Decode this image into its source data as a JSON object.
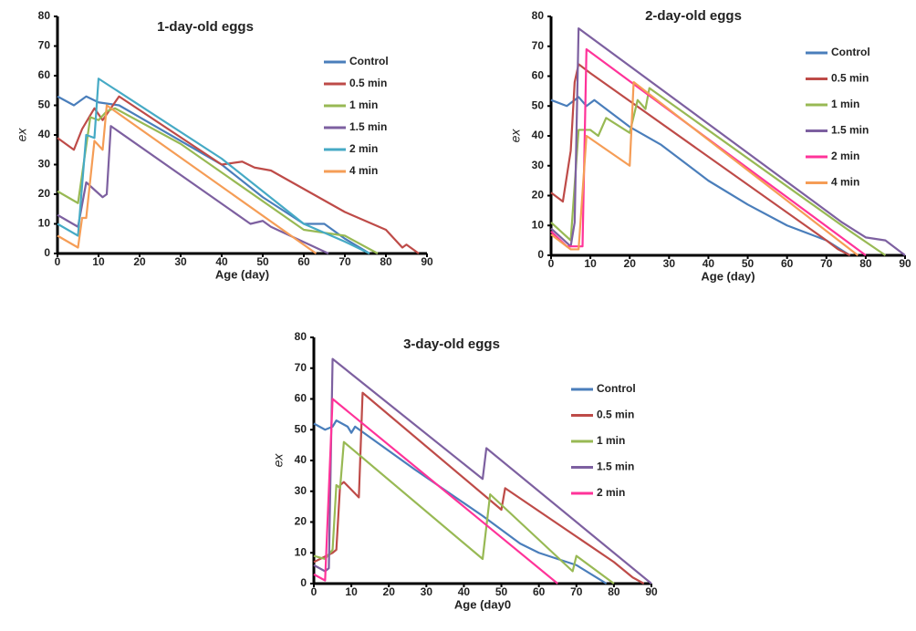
{
  "chart_data": [
    {
      "type": "line",
      "title": "1-day-old eggs",
      "xlabel": "Age (day)",
      "ylabel": "ex",
      "xlim": [
        0,
        90
      ],
      "ylim": [
        0,
        80
      ],
      "xticks": [
        0,
        10,
        20,
        30,
        40,
        50,
        60,
        70,
        80,
        90
      ],
      "yticks": [
        0,
        10,
        20,
        30,
        40,
        50,
        60,
        70,
        80
      ],
      "series": [
        {
          "name": "Control",
          "color": "#4a7ebb",
          "x": [
            0,
            4,
            7,
            10,
            15,
            40,
            50,
            60,
            65,
            70,
            76
          ],
          "values": [
            53,
            50,
            53,
            51,
            50,
            30,
            19,
            10,
            10,
            5,
            0
          ]
        },
        {
          "name": "0.5 min",
          "color": "#be4b48",
          "x": [
            0,
            4,
            6,
            9,
            11,
            15,
            40,
            45,
            48,
            52,
            70,
            80,
            84,
            85,
            88
          ],
          "values": [
            39,
            35,
            42,
            49,
            45,
            53,
            30,
            31,
            29,
            28,
            14,
            8,
            2,
            3,
            0
          ]
        },
        {
          "name": "1 min",
          "color": "#98b954",
          "x": [
            0,
            5,
            8,
            10,
            12,
            14,
            30,
            60,
            70,
            78
          ],
          "values": [
            21,
            17,
            46,
            45,
            48,
            49,
            37,
            8,
            6,
            0
          ]
        },
        {
          "name": "1.5 min",
          "color": "#7d60a0",
          "x": [
            0,
            5,
            7,
            11,
            12,
            13,
            47,
            50,
            52,
            66
          ],
          "values": [
            13,
            9,
            24,
            19,
            20,
            43,
            10,
            11,
            9,
            0
          ]
        },
        {
          "name": "2 min",
          "color": "#46aac5",
          "x": [
            0,
            5,
            7,
            9,
            10,
            40,
            50,
            60,
            70,
            76
          ],
          "values": [
            10,
            6,
            40,
            39,
            59,
            32,
            21,
            10,
            4,
            0
          ]
        },
        {
          "name": "4 min",
          "color": "#f59d56",
          "x": [
            0,
            5,
            6,
            7,
            9,
            11,
            12,
            63
          ],
          "values": [
            6,
            2,
            12,
            12,
            38,
            35,
            50,
            0
          ]
        }
      ]
    },
    {
      "type": "line",
      "title": "2-day-old eggs",
      "xlabel": "Age (day)",
      "ylabel": "ex",
      "xlim": [
        0,
        90
      ],
      "ylim": [
        0,
        80
      ],
      "xticks": [
        0,
        10,
        20,
        30,
        40,
        50,
        60,
        70,
        80,
        90
      ],
      "yticks": [
        0,
        10,
        20,
        30,
        40,
        50,
        60,
        70,
        80
      ],
      "series": [
        {
          "name": "Control",
          "color": "#4a7ebb",
          "x": [
            0,
            4,
            7,
            9,
            11,
            20,
            28,
            40,
            50,
            60,
            70,
            76
          ],
          "values": [
            52,
            50,
            53,
            50,
            52,
            43,
            37,
            25,
            17,
            10,
            5,
            0
          ]
        },
        {
          "name": "0.5 min",
          "color": "#be4b48",
          "x": [
            0,
            3,
            5,
            6,
            7,
            10,
            70,
            73,
            76
          ],
          "values": [
            21,
            18,
            35,
            58,
            64,
            61,
            5,
            2,
            0
          ]
        },
        {
          "name": "1 min",
          "color": "#98b954",
          "x": [
            0,
            5,
            7,
            10,
            12,
            14,
            20,
            22,
            24,
            25,
            75,
            85
          ],
          "values": [
            11,
            5,
            42,
            42,
            40,
            46,
            41,
            52,
            49,
            56,
            9,
            0
          ]
        },
        {
          "name": "1.5 min",
          "color": "#7d60a0",
          "x": [
            0,
            5,
            6,
            7,
            74,
            80,
            85,
            90
          ],
          "values": [
            9,
            3,
            11,
            76,
            11,
            6,
            5,
            0
          ]
        },
        {
          "name": "2 min",
          "color": "#ff3399",
          "x": [
            0,
            4,
            8,
            9,
            80
          ],
          "values": [
            8,
            3,
            3,
            69,
            0
          ]
        },
        {
          "name": "4 min",
          "color": "#f59d56",
          "x": [
            0,
            5,
            7,
            9,
            20,
            21,
            78
          ],
          "values": [
            7,
            2,
            2,
            40,
            30,
            58,
            0
          ]
        }
      ]
    },
    {
      "type": "line",
      "title": "3-day-old eggs",
      "xlabel": "Age (day0",
      "ylabel": "ex",
      "xlim": [
        0,
        90
      ],
      "ylim": [
        0,
        80
      ],
      "xticks": [
        0,
        10,
        20,
        30,
        40,
        50,
        60,
        70,
        80,
        90
      ],
      "yticks": [
        0,
        10,
        20,
        30,
        40,
        50,
        60,
        70,
        80
      ],
      "series": [
        {
          "name": "Control",
          "color": "#4a7ebb",
          "x": [
            0,
            3,
            5,
            6,
            9,
            10,
            11,
            27,
            45,
            55,
            60,
            65,
            70,
            78
          ],
          "values": [
            52,
            50,
            51,
            53,
            51,
            49,
            51,
            37,
            22,
            13,
            10,
            8,
            6,
            0
          ]
        },
        {
          "name": "0.5 min",
          "color": "#be4b48",
          "x": [
            0,
            5,
            6,
            7,
            8,
            12,
            13,
            50,
            51,
            80,
            85,
            88
          ],
          "values": [
            7,
            10,
            11,
            32,
            33,
            28,
            62,
            24,
            31,
            7,
            2,
            0
          ]
        },
        {
          "name": "1 min",
          "color": "#98b954",
          "x": [
            0,
            3,
            5,
            6,
            7,
            8,
            45,
            47,
            69,
            70,
            80
          ],
          "values": [
            9,
            8,
            11,
            32,
            31,
            46,
            8,
            29,
            4,
            9,
            0
          ]
        },
        {
          "name": "1.5 min",
          "color": "#7d60a0",
          "x": [
            0,
            3,
            4,
            5,
            45,
            46,
            90
          ],
          "values": [
            6,
            4,
            5,
            73,
            34,
            44,
            0
          ]
        },
        {
          "name": "2 min",
          "color": "#ff3399",
          "x": [
            0,
            3,
            5,
            65
          ],
          "values": [
            3,
            1,
            60,
            0
          ]
        }
      ]
    }
  ]
}
